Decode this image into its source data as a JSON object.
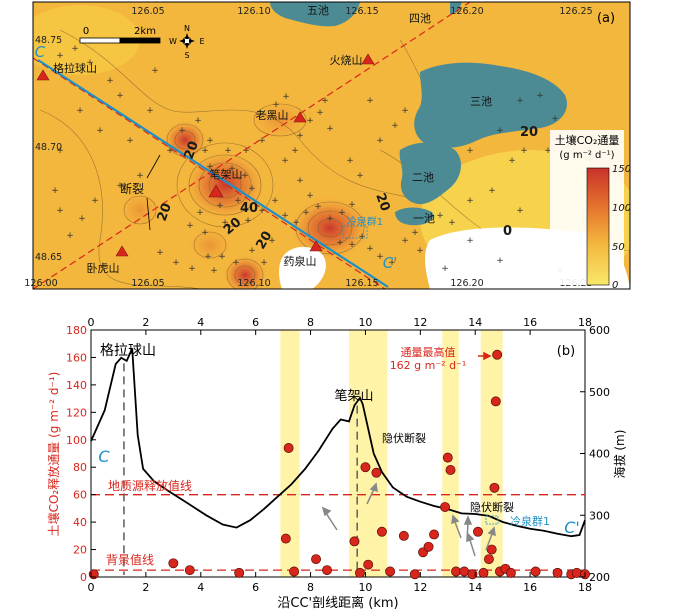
{
  "chart_data": [
    {
      "panel_label": "(a)",
      "type": "heatmap",
      "x_ticks": [
        "126.00",
        "126.05",
        "126.10",
        "126.15",
        "126.20",
        "126.25"
      ],
      "y_ticks": [
        "48.75",
        "48.70",
        "48.65"
      ],
      "colorbar": {
        "title_line1": "土壤CO₂通量",
        "title_line2": "(g m⁻² d⁻¹)",
        "ticks": [
          0,
          50,
          100,
          150
        ],
        "range": [
          0,
          150
        ],
        "color_low": "#f6d743",
        "color_high": "#c8322b"
      },
      "scale_bar": {
        "start": "0",
        "end": "2km"
      },
      "compass": {
        "n": "N",
        "s": "S",
        "e": "E",
        "w": "W"
      },
      "contour_labels": [
        "20",
        "20",
        "40",
        "20",
        "20",
        "20",
        "0",
        "20"
      ],
      "lakes": [
        "五池",
        "四池",
        "三池",
        "二池",
        "一池"
      ],
      "volcanoes": [
        "格拉球山",
        "火烧山",
        "老黑山",
        "笔架山",
        "卧虎山",
        "药泉山"
      ],
      "features": {
        "fault": "断裂",
        "spring": "冷泉群1",
        "profile_start": "C",
        "profile_end": "C'"
      },
      "colors": {
        "water": "#4d8b94",
        "volcano": "#d9261c",
        "profile_line": "#1e90c8",
        "fault_line": "#d9261c"
      }
    },
    {
      "panel_label": "(b)",
      "type": "scatter",
      "xlabel": "沿CC'剖线距离 (km)",
      "ylabel_left": "土壤CO₂释放通量 (g m⁻² d⁻¹)",
      "ylabel_right": "海拔 (m)",
      "xlim": [
        0,
        18
      ],
      "ylim_left": [
        0,
        180
      ],
      "ylim_right": [
        200,
        600
      ],
      "x_ticks": [
        0,
        2,
        4,
        6,
        8,
        10,
        12,
        14,
        16,
        18
      ],
      "y_left_ticks": [
        0,
        20,
        40,
        60,
        80,
        100,
        120,
        140,
        160,
        180
      ],
      "y_right_ticks": [
        200,
        300,
        400,
        500,
        600
      ],
      "background_line": {
        "value": 5,
        "label": "背景值线"
      },
      "geologic_line": {
        "value": 60,
        "label": "地质源释放值线"
      },
      "highlight_bands": [
        [
          6.9,
          7.6
        ],
        [
          9.4,
          10.8
        ],
        [
          12.8,
          13.4
        ],
        [
          14.2,
          15.0
        ]
      ],
      "flux_points": [
        {
          "x": 0.1,
          "y": 2
        },
        {
          "x": 3.0,
          "y": 10
        },
        {
          "x": 3.6,
          "y": 5
        },
        {
          "x": 5.4,
          "y": 3
        },
        {
          "x": 7.1,
          "y": 28
        },
        {
          "x": 7.2,
          "y": 94
        },
        {
          "x": 7.4,
          "y": 4
        },
        {
          "x": 8.2,
          "y": 13
        },
        {
          "x": 8.6,
          "y": 5
        },
        {
          "x": 9.6,
          "y": 26
        },
        {
          "x": 9.8,
          "y": 3
        },
        {
          "x": 10.0,
          "y": 80
        },
        {
          "x": 10.1,
          "y": 9
        },
        {
          "x": 10.4,
          "y": 76
        },
        {
          "x": 10.6,
          "y": 33
        },
        {
          "x": 10.9,
          "y": 4
        },
        {
          "x": 11.4,
          "y": 30
        },
        {
          "x": 11.8,
          "y": 2
        },
        {
          "x": 12.1,
          "y": 18
        },
        {
          "x": 12.3,
          "y": 22
        },
        {
          "x": 12.5,
          "y": 31
        },
        {
          "x": 12.9,
          "y": 51
        },
        {
          "x": 13.0,
          "y": 87
        },
        {
          "x": 13.1,
          "y": 78
        },
        {
          "x": 13.3,
          "y": 4
        },
        {
          "x": 13.6,
          "y": 4
        },
        {
          "x": 13.9,
          "y": 2
        },
        {
          "x": 14.1,
          "y": 33
        },
        {
          "x": 14.3,
          "y": 3
        },
        {
          "x": 14.5,
          "y": 13
        },
        {
          "x": 14.6,
          "y": 20
        },
        {
          "x": 14.7,
          "y": 65
        },
        {
          "x": 14.75,
          "y": 128
        },
        {
          "x": 14.8,
          "y": 162
        },
        {
          "x": 14.9,
          "y": 4
        },
        {
          "x": 15.1,
          "y": 6
        },
        {
          "x": 15.3,
          "y": 3
        },
        {
          "x": 16.2,
          "y": 4
        },
        {
          "x": 17.0,
          "y": 3
        },
        {
          "x": 17.5,
          "y": 2
        },
        {
          "x": 17.7,
          "y": 3
        },
        {
          "x": 18.0,
          "y": 2
        }
      ],
      "elevation_profile": {
        "x": [
          0,
          0.5,
          0.9,
          1.1,
          1.3,
          1.5,
          1.7,
          1.9,
          2.3,
          2.8,
          3.5,
          4.2,
          4.8,
          5.3,
          5.8,
          6.3,
          6.8,
          7.3,
          7.8,
          8.3,
          8.8,
          9.1,
          9.4,
          9.6,
          9.8,
          9.9,
          10.1,
          10.3,
          10.6,
          11.0,
          11.5,
          12.0,
          12.5,
          13.0,
          13.5,
          14.0,
          14.5,
          15.0,
          15.5,
          16.0,
          16.5,
          17.0,
          17.5,
          17.8,
          18.0
        ],
        "y": [
          420,
          470,
          545,
          555,
          550,
          570,
          430,
          375,
          355,
          340,
          320,
          300,
          285,
          280,
          292,
          310,
          330,
          350,
          375,
          405,
          440,
          455,
          452,
          478,
          490,
          480,
          440,
          400,
          370,
          345,
          330,
          322,
          315,
          310,
          303,
          302,
          299,
          289,
          283,
          278,
          275,
          270,
          266,
          268,
          292
        ]
      },
      "profile_markers": [
        {
          "x": 1.2,
          "label": "格拉球山"
        },
        {
          "x": 9.7,
          "label": "笔架山"
        }
      ],
      "annotations": {
        "max_label_line1": "通量最高值",
        "max_label_line2": "162 g m⁻² d⁻¹",
        "hidden_fault_1": "隐伏断裂",
        "hidden_fault_2": "隐伏断裂",
        "spring": "冷泉群1",
        "c_start": "C",
        "c_end": "C'"
      },
      "colors": {
        "points": "#d9261c",
        "ref_lines": "#d9261c",
        "bands": "#fff3a8",
        "elevation": "#000000",
        "marker_lines": "#666666",
        "c_labels": "#1e90c8"
      }
    }
  ]
}
